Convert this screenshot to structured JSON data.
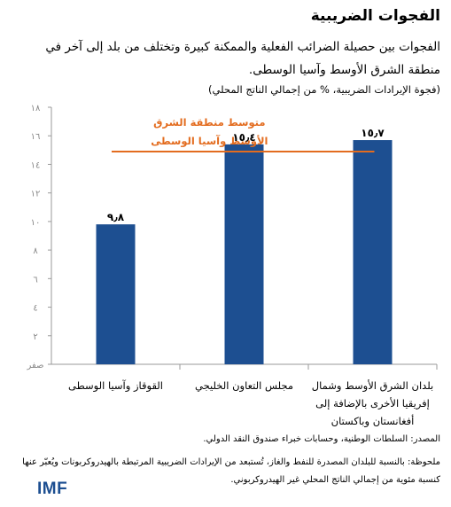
{
  "header": {
    "title": "الفجوات الضريبية",
    "subtitle": "الفجوات بين حصيلة الضرائب الفعلية والممكنة كبيرة وتختلف من بلد إلى آخر في منطقة الشرق الأوسط وآسيا الوسطى.",
    "unit_note": "(فجوة الإيرادات الضريبية، % من إجمالي الناتج المحلي)"
  },
  "chart_data": {
    "type": "bar",
    "categories": [
      "القوقاز وآسيا الوسطى",
      "مجلس التعاون الخليجي",
      "بلدان الشرق الأوسط وشمال أفريقيا الأخرى بالإضافة إلى أفغانستان وباكستان"
    ],
    "category_lines": [
      [
        "القوقاز وآسيا الوسطى"
      ],
      [
        "مجلس التعاون الخليجي"
      ],
      [
        "بلدان الشرق الأوسط وشمال",
        "إفريقيا الأخرى بالإضافة إلى",
        "أفغانستان وباكستان"
      ]
    ],
    "values": [
      9.8,
      15.4,
      15.7
    ],
    "data_labels": [
      "٩٫٨",
      "١٥٫٤",
      "١٥٫٧"
    ],
    "ylim": [
      0,
      18
    ],
    "yticks": [
      0,
      2,
      4,
      6,
      8,
      10,
      12,
      14,
      16,
      18
    ],
    "ytick_labels": [
      "صفر",
      "٢",
      "٤",
      "٦",
      "٨",
      "١٠",
      "١٢",
      "١٤",
      "١٦",
      "١٨"
    ],
    "reference_line": {
      "value": 14.9,
      "label_lines": [
        "متوسط منطقة الشرق",
        "الأوسط وآسيا الوسطى"
      ]
    },
    "bar_color": "#1d4f91",
    "reference_color": "#e36c1f",
    "grid": false
  },
  "footer": {
    "source": "المصدر: السلطات الوطنية، وحسابات خبراء صندوق النقد الدولي.",
    "note": "ملحوظة: بالنسبة للبلدان المصدرة للنفط والغاز، تُستبعد من الإيرادات الضريبية المرتبطة بالهيدروكربونات ويُعبّر عنها كنسبة مئوية من إجمالي الناتج المحلي غير الهيدروكربوني.",
    "logo": "IMF"
  }
}
